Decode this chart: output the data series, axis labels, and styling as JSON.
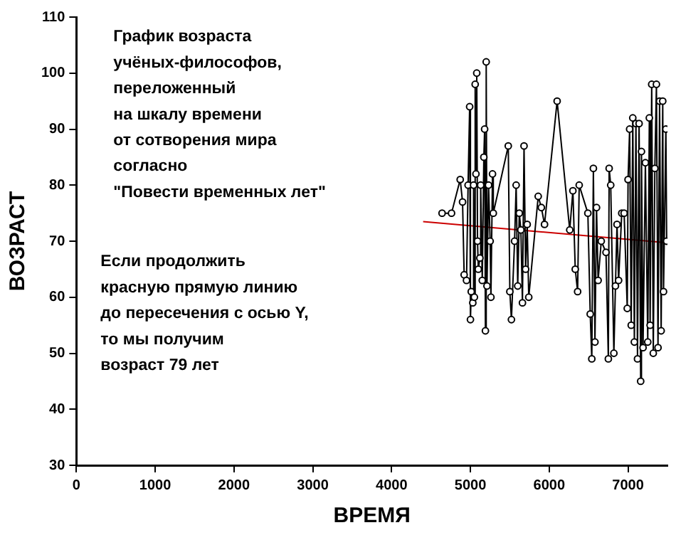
{
  "chart_data": {
    "type": "line",
    "xlabel": "ВРЕМЯ",
    "ylabel": "ВОЗРАСТ",
    "annotations": [
      "График возраста\nучёных-философов,\nпереложенный\nна шкалу времени\nот сотворения мира\nсогласно\n\"Повести временных лет\"",
      "Если продолжить\nкрасную прямую линию\nдо пересечения с осью Y,\nто мы получим\nвозраст 79 лет"
    ],
    "xlim": [
      0,
      7500
    ],
    "xticks": [
      0,
      1000,
      2000,
      3000,
      4000,
      5000,
      6000,
      7000
    ],
    "ylim": [
      30,
      110
    ],
    "yticks": [
      30,
      40,
      50,
      60,
      70,
      80,
      90,
      100,
      110
    ],
    "grid": false,
    "legend": false,
    "marker": "circle",
    "line_style": "solid",
    "series": [
      {
        "color": "#000000",
        "x": [
          4640,
          4760,
          4870,
          4900,
          4920,
          4950,
          4970,
          4990,
          5000,
          5010,
          5030,
          5040,
          5050,
          5060,
          5070,
          5080,
          5090,
          5100,
          5120,
          5130,
          5150,
          5170,
          5180,
          5190,
          5200,
          5210,
          5230,
          5250,
          5260,
          5280,
          5290,
          5480,
          5500,
          5520,
          5560,
          5580,
          5600,
          5620,
          5640,
          5660,
          5680,
          5700,
          5720,
          5740,
          5860,
          5900,
          5940,
          6100,
          6260,
          6300,
          6330,
          6360,
          6380,
          6490,
          6520,
          6540,
          6560,
          6580,
          6600,
          6620,
          6660,
          6720,
          6750,
          6760,
          6780,
          6820,
          6840,
          6860,
          6880,
          6920,
          6950,
          6990,
          7000,
          7020,
          7040,
          7060,
          7080,
          7100,
          7120,
          7140,
          7160,
          7170,
          7190,
          7220,
          7250,
          7270,
          7280,
          7300,
          7320,
          7340,
          7360,
          7380,
          7400,
          7420,
          7440,
          7450,
          7480,
          7490
        ],
        "values": [
          75,
          75,
          81,
          77,
          64,
          63,
          80,
          94,
          56,
          61,
          59,
          80,
          60,
          98,
          82,
          100,
          70,
          65,
          67,
          80,
          63,
          85,
          90,
          54,
          102,
          62,
          80,
          70,
          60,
          82,
          75,
          87,
          61,
          56,
          70,
          80,
          62,
          75,
          72,
          59,
          87,
          65,
          73,
          60,
          78,
          76,
          73,
          95,
          72,
          79,
          65,
          61,
          80,
          75,
          57,
          49,
          83,
          52,
          76,
          63,
          70,
          68,
          49,
          83,
          80,
          50,
          62,
          73,
          63,
          75,
          75,
          58,
          81,
          90,
          55,
          92,
          52,
          91,
          49,
          91,
          45,
          86,
          51,
          84,
          52,
          92,
          55,
          98,
          50,
          83,
          98,
          51,
          95,
          54,
          95,
          61,
          90,
          70
        ]
      },
      {
        "color": "#cc0000",
        "marker": "none",
        "x": [
          4400,
          7500
        ],
        "values": [
          73.5,
          69.7
        ]
      }
    ]
  }
}
